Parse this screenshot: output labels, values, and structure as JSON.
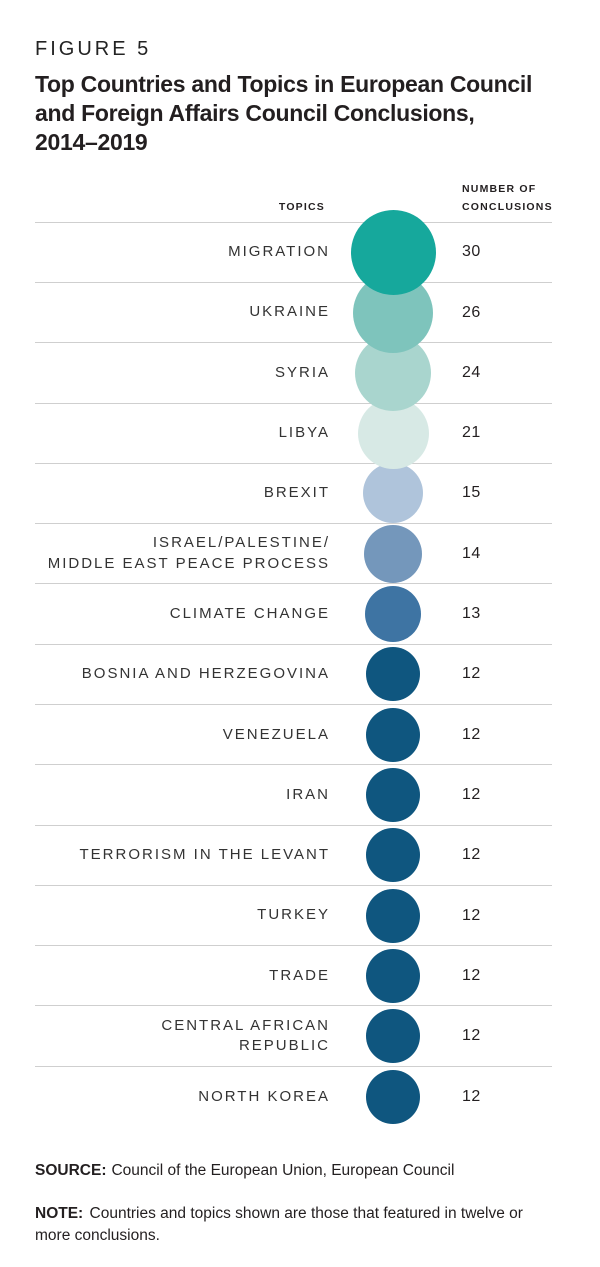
{
  "header": {
    "figure_label": "FIGURE 5",
    "title": "Top Countries and Topics in European Council\nand Foreign Affairs Council Conclusions,\n2014–2019"
  },
  "chart": {
    "columns": {
      "topics": "TOPICS",
      "number": "NUMBER OF\nCONCLUSIONS"
    },
    "rows": [
      {
        "topic": "MIGRATION",
        "value": 30,
        "color": "#16A89C"
      },
      {
        "topic": "UKRAINE",
        "value": 26,
        "color": "#7EC4BC"
      },
      {
        "topic": "SYRIA",
        "value": 24,
        "color": "#A9D5CE"
      },
      {
        "topic": "LIBYA",
        "value": 21,
        "color": "#D7E9E5"
      },
      {
        "topic": "BREXIT",
        "value": 15,
        "color": "#AFC4DB"
      },
      {
        "topic": "ISRAEL/PALESTINE/\nMIDDLE EAST PEACE PROCESS",
        "value": 14,
        "color": "#7497BB"
      },
      {
        "topic": "CLIMATE CHANGE",
        "value": 13,
        "color": "#3E74A3"
      },
      {
        "topic": "BOSNIA AND HERZEGOVINA",
        "value": 12,
        "color": "#0F567F"
      },
      {
        "topic": "VENEZUELA",
        "value": 12,
        "color": "#0F567F"
      },
      {
        "topic": "IRAN",
        "value": 12,
        "color": "#0F567F"
      },
      {
        "topic": "TERRORISM IN THE LEVANT",
        "value": 12,
        "color": "#0F567F"
      },
      {
        "topic": "TURKEY",
        "value": 12,
        "color": "#0F567F"
      },
      {
        "topic": "TRADE",
        "value": 12,
        "color": "#0F567F"
      },
      {
        "topic": "CENTRAL AFRICAN\nREPUBLIC",
        "value": 12,
        "color": "#0F567F"
      },
      {
        "topic": "NORTH KOREA",
        "value": 12,
        "color": "#0F567F"
      }
    ]
  },
  "footer": {
    "source_label": "SOURCE:",
    "source_text": "Council of the European Union, European Council",
    "note_label": "NOTE:",
    "note_text": "Countries and topics shown are those that featured in twelve or more conclusions."
  },
  "chart_data": {
    "type": "scatter",
    "variant": "proportional-symbol-list",
    "title": "Top Countries and Topics in European Council and Foreign Affairs Council Conclusions, 2014–2019",
    "categories": [
      "MIGRATION",
      "UKRAINE",
      "SYRIA",
      "LIBYA",
      "BREXIT",
      "ISRAEL/PALESTINE/MIDDLE EAST PEACE PROCESS",
      "CLIMATE CHANGE",
      "BOSNIA AND HERZEGOVINA",
      "VENEZUELA",
      "IRAN",
      "TERRORISM IN THE LEVANT",
      "TURKEY",
      "TRADE",
      "CENTRAL AFRICAN REPUBLIC",
      "NORTH KOREA"
    ],
    "values": [
      30,
      26,
      24,
      21,
      15,
      14,
      13,
      12,
      12,
      12,
      12,
      12,
      12,
      12,
      12
    ],
    "value_label": "NUMBER OF CONCLUSIONS",
    "category_label": "TOPICS",
    "bubble_colors": [
      "#16A89C",
      "#7EC4BC",
      "#A9D5CE",
      "#D7E9E5",
      "#AFC4DB",
      "#7497BB",
      "#3E74A3",
      "#0F567F",
      "#0F567F",
      "#0F567F",
      "#0F567F",
      "#0F567F",
      "#0F567F",
      "#0F567F",
      "#0F567F"
    ],
    "size_encoding": "circle area proportional to value",
    "legend": "none",
    "grid": "horizontal row dividers"
  }
}
